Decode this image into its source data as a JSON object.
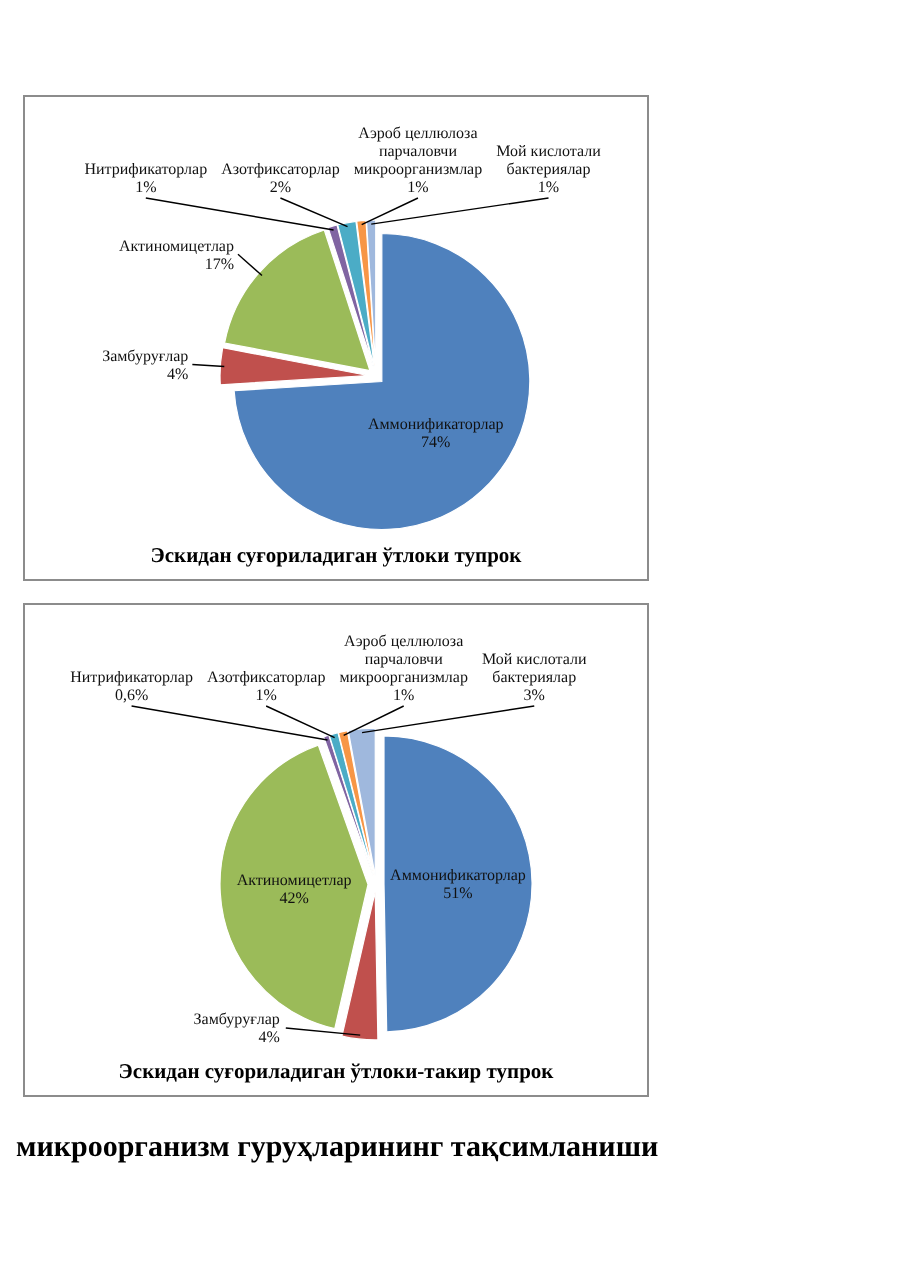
{
  "chart_data": [
    {
      "type": "pie",
      "title": "Эскидан суғориладиган ўтлоки тупрок",
      "categories": [
        "Аммонификаторлар",
        "Замбуруғлар",
        "Актиномицетлар",
        "Нитрификаторлар",
        "Азотфиксаторлар",
        "Аэроб целлюлоза парчаловчи микроорганизмлар",
        "Мой кислотали бактериялар"
      ],
      "values": [
        74,
        4,
        17,
        1,
        2,
        1,
        1
      ],
      "colors": [
        "#4f81bd",
        "#c0504d",
        "#9bbb59",
        "#8064a2",
        "#4bacc6",
        "#f79646",
        "#9fb8dd"
      ],
      "value_labels": [
        "74%",
        "4%",
        "17%",
        "1%",
        "2%",
        "1%",
        "1%"
      ]
    },
    {
      "type": "pie",
      "title": "Эскидан суғориладиган ўтлоки-такир тупрок",
      "categories": [
        "Аммонификаторлар",
        "Замбуруғлар",
        "Актиномицетлар",
        "Нитрификаторлар",
        "Азотфиксаторлар",
        "Аэроб целлюлоза парчаловчи микроорганизмлар",
        "Мой кислотали бактериялар"
      ],
      "values": [
        51,
        4,
        42,
        0.6,
        1,
        1,
        3
      ],
      "colors": [
        "#4f81bd",
        "#c0504d",
        "#9bbb59",
        "#8064a2",
        "#4bacc6",
        "#f79646",
        "#9fb8dd"
      ],
      "value_labels": [
        "51%",
        "4%",
        "42%",
        "0,6%",
        "1%",
        "1%",
        "3%"
      ],
      "annotations": [
        "микроорганизм гуруҳларининг тақсимланиши"
      ]
    }
  ]
}
